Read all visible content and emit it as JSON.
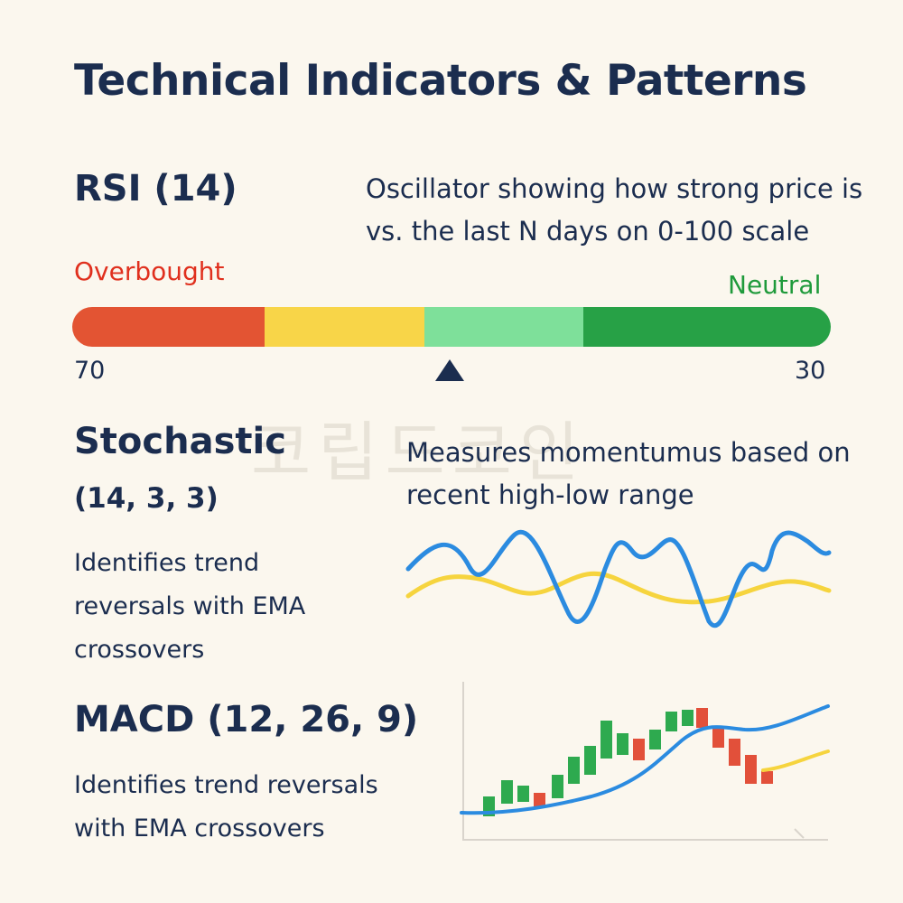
{
  "title": "Technical Indicators & Patterns",
  "watermark": "코립드코인",
  "rsi": {
    "title": "RSI (14)",
    "description": "Oscillator showing how strong price is vs. the last N days on 0-100 scale",
    "overbought_label": "Overbought",
    "neutral_label": "Neutral",
    "left_value": "70",
    "right_value": "30",
    "segments": [
      "#e35433",
      "#f8d548",
      "#7ee09a",
      "#27a146"
    ],
    "marker_fraction": 0.5
  },
  "stochastic": {
    "title": "Stochastic",
    "params": "(14, 3, 3)",
    "description": "Measures momentumus based on recent high-low range",
    "note": "Identifies trend reversals with EMA crossovers",
    "colors": {
      "k_line": "#2b8be0",
      "d_line": "#f6d43e"
    }
  },
  "macd": {
    "title": "MACD (12, 26, 9)",
    "description": "Identifies trend reversals with EMA crossovers",
    "colors": {
      "up": "#2eaa4f",
      "down": "#e2503a",
      "ema_line": "#2b8be0",
      "signal_line": "#f6d43e"
    }
  }
}
